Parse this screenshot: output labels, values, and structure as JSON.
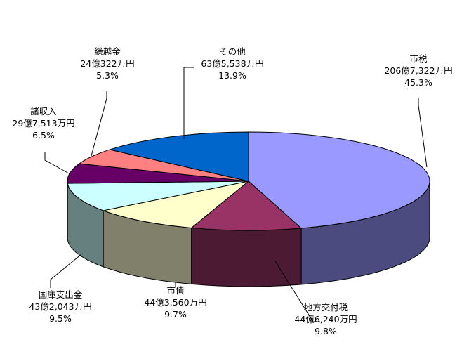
{
  "chart_data": {
    "type": "pie",
    "style": "3d",
    "legend": "none",
    "slices": [
      {
        "label": "市税",
        "amount": "206億7,322万円",
        "pct_text": "45.3%",
        "value": 45.3,
        "color": "#9999ff",
        "side": "#4b4b80"
      },
      {
        "label": "地方交付税",
        "amount": "44億6,240万円",
        "pct_text": "9.8%",
        "value": 9.8,
        "color": "#993366",
        "side": "#4c1a33"
      },
      {
        "label": "市債",
        "amount": "44億3,560万円",
        "pct_text": "9.7%",
        "value": 9.7,
        "color": "#ffffcc",
        "side": "#80806b"
      },
      {
        "label": "国庫支出金",
        "amount": "43億2,043万円",
        "pct_text": "9.5%",
        "value": 9.5,
        "color": "#ccffff",
        "side": "#668080"
      },
      {
        "label": "諸収入",
        "amount": "29億7,513万円",
        "pct_text": "6.5%",
        "value": 6.5,
        "color": "#660066",
        "side": "#330033"
      },
      {
        "label": "繰越金",
        "amount": "24億322万円",
        "pct_text": "5.3%",
        "value": 5.3,
        "color": "#ff8080",
        "side": "#804040"
      },
      {
        "label": "その他",
        "amount": "63億5,538万円",
        "pct_text": "13.9%",
        "value": 13.9,
        "color": "#0066cc",
        "side": "#003366"
      }
    ]
  }
}
